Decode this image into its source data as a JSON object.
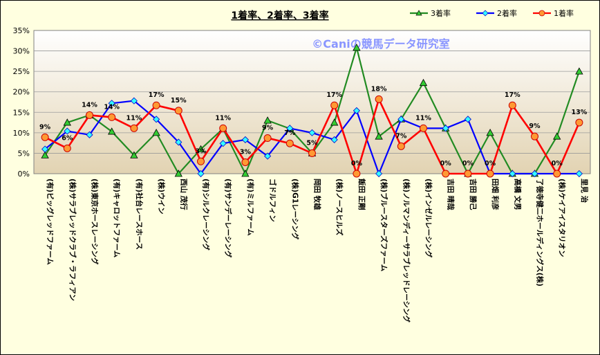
{
  "chart_data": {
    "type": "line",
    "title": "1着率、2着率、3着率",
    "watermark": "©Caniの競馬データ研究室",
    "yticks": [
      "0%",
      "5%",
      "10%",
      "15%",
      "20%",
      "25%",
      "30%",
      "35%"
    ],
    "ylim": [
      0,
      35
    ],
    "grid": true,
    "legend_position": "top-right",
    "categories": [
      "(有)ビッグレッドファーム",
      "(株)サラブレッドクラブ・ラフィアン",
      "(株)東京ホースレーシング",
      "(有)キャロットファーム",
      "(有)社台レースホース",
      "(株)ウイン",
      "西山 茂行",
      "(有)シルクレーシング",
      "(有)サンデーレーシング",
      "(有)ミルファーム",
      "ゴドルフィン",
      "(株)G1レーシング",
      "岡田 牧雄",
      "(株)ノースヒルズ",
      "飯田 正剛",
      "(株)ブルースターズファーム",
      "(株)ノルマンディーサラブレッドレーシング",
      "(株)インゼルレーシング",
      "吉田 晴哉",
      "吉田 勝己",
      "田畑 利彦",
      "高橋 文男",
      "了徳寺健二ホールディングス(株)",
      "(株)ケイアイスタリオン",
      "里見 治"
    ],
    "series": [
      {
        "name": "3着率",
        "color": "#228b22",
        "marker": "triangle",
        "values": [
          4.5,
          12.5,
          14.3,
          10.3,
          4.5,
          10.0,
          0,
          6.0,
          11.0,
          0,
          13.0,
          11.0,
          5.0,
          12.5,
          30.8,
          9.1,
          13.3,
          22.2,
          11.1,
          0,
          10.0,
          0,
          0,
          9.1,
          25.0
        ]
      },
      {
        "name": "2着率",
        "color": "#0000ff",
        "marker": "diamond",
        "values": [
          6.0,
          10.4,
          9.5,
          17.2,
          17.8,
          13.3,
          7.7,
          0,
          7.4,
          8.3,
          4.3,
          11.1,
          10.0,
          8.3,
          15.4,
          0,
          13.3,
          11.1,
          11.1,
          13.3,
          0,
          0,
          0,
          0,
          0
        ]
      },
      {
        "name": "1着率",
        "color": "#ff0000",
        "marker": "circle",
        "values": [
          8.9,
          6.2,
          14.3,
          13.8,
          11.1,
          16.7,
          15.4,
          3.0,
          11.1,
          2.8,
          8.7,
          7.4,
          5.0,
          16.7,
          0,
          18.2,
          6.7,
          11.1,
          0,
          0,
          0,
          16.7,
          9.1,
          0,
          12.5
        ]
      }
    ],
    "data_labels": [
      "9%",
      "6%",
      "14%",
      "14%",
      "11%",
      "17%",
      "15%",
      "3%",
      "11%",
      "3%",
      "9%",
      "7%",
      "5%",
      "17%",
      "0%",
      "18%",
      "7%",
      "11%",
      "0%",
      "0%",
      "0%",
      "17%",
      "9%",
      "0%",
      "13%"
    ]
  }
}
